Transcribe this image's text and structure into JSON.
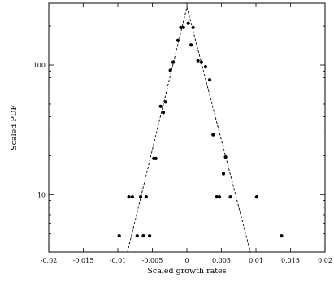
{
  "chart_data": {
    "type": "scatter",
    "xlabel": "Scaled growth rates",
    "ylabel": "Scaled PDF",
    "xlim": [
      -0.02,
      0.02
    ],
    "ylim": [
      3.6,
      300
    ],
    "y_scale": "log",
    "grid": false,
    "legend": "none",
    "x_ticks": [
      {
        "value": -0.02,
        "label": "-0.02"
      },
      {
        "value": -0.015,
        "label": "-0.015"
      },
      {
        "value": -0.01,
        "label": "-0.01"
      },
      {
        "value": -0.005,
        "label": "-0.005"
      },
      {
        "value": 0,
        "label": "0"
      },
      {
        "value": 0.005,
        "label": "0.005"
      },
      {
        "value": 0.01,
        "label": "0.01"
      },
      {
        "value": 0.015,
        "label": "0.015"
      },
      {
        "value": 0.02,
        "label": "0.02"
      }
    ],
    "y_ticks": [
      {
        "value": 10,
        "label": "10"
      },
      {
        "value": 100,
        "label": "100"
      }
    ],
    "series": [
      {
        "kind": "points",
        "color": "#000000",
        "points": [
          [
            -0.0098,
            4.8
          ],
          [
            -0.0072,
            4.8
          ],
          [
            -0.0063,
            4.8
          ],
          [
            -0.0054,
            4.8
          ],
          [
            0.0137,
            4.8
          ],
          [
            -0.0084,
            9.6
          ],
          [
            -0.0079,
            9.6
          ],
          [
            -0.0067,
            9.6
          ],
          [
            -0.0059,
            9.6
          ],
          [
            0.0043,
            9.6
          ],
          [
            0.0047,
            9.6
          ],
          [
            0.0063,
            9.6
          ],
          [
            0.0101,
            9.6
          ],
          [
            -0.0048,
            19
          ],
          [
            -0.0045,
            19
          ],
          [
            0.0053,
            14.5
          ],
          [
            0.0056,
            19.5
          ],
          [
            0.0038,
            29
          ],
          [
            -0.0038,
            48
          ],
          [
            -0.0034,
            43
          ],
          [
            -0.0031,
            52
          ],
          [
            -0.0024,
            91
          ],
          [
            -0.002,
            105
          ],
          [
            0.0033,
            77
          ],
          [
            -0.0013,
            155
          ],
          [
            -0.0009,
            195
          ],
          [
            -0.0005,
            195
          ],
          [
            0.0002,
            210
          ],
          [
            0.0009,
            195
          ],
          [
            0.0006,
            143
          ],
          [
            0.0016,
            108
          ],
          [
            0.0021,
            105
          ],
          [
            0.0027,
            97
          ]
        ]
      },
      {
        "kind": "dashed-line",
        "color": "#000000",
        "segments": [
          [
            [
              -0.0086,
              3.6
            ],
            [
              0.0,
              280
            ]
          ],
          [
            [
              0.0,
              280
            ],
            [
              0.0092,
              3.6
            ]
          ]
        ]
      }
    ]
  }
}
